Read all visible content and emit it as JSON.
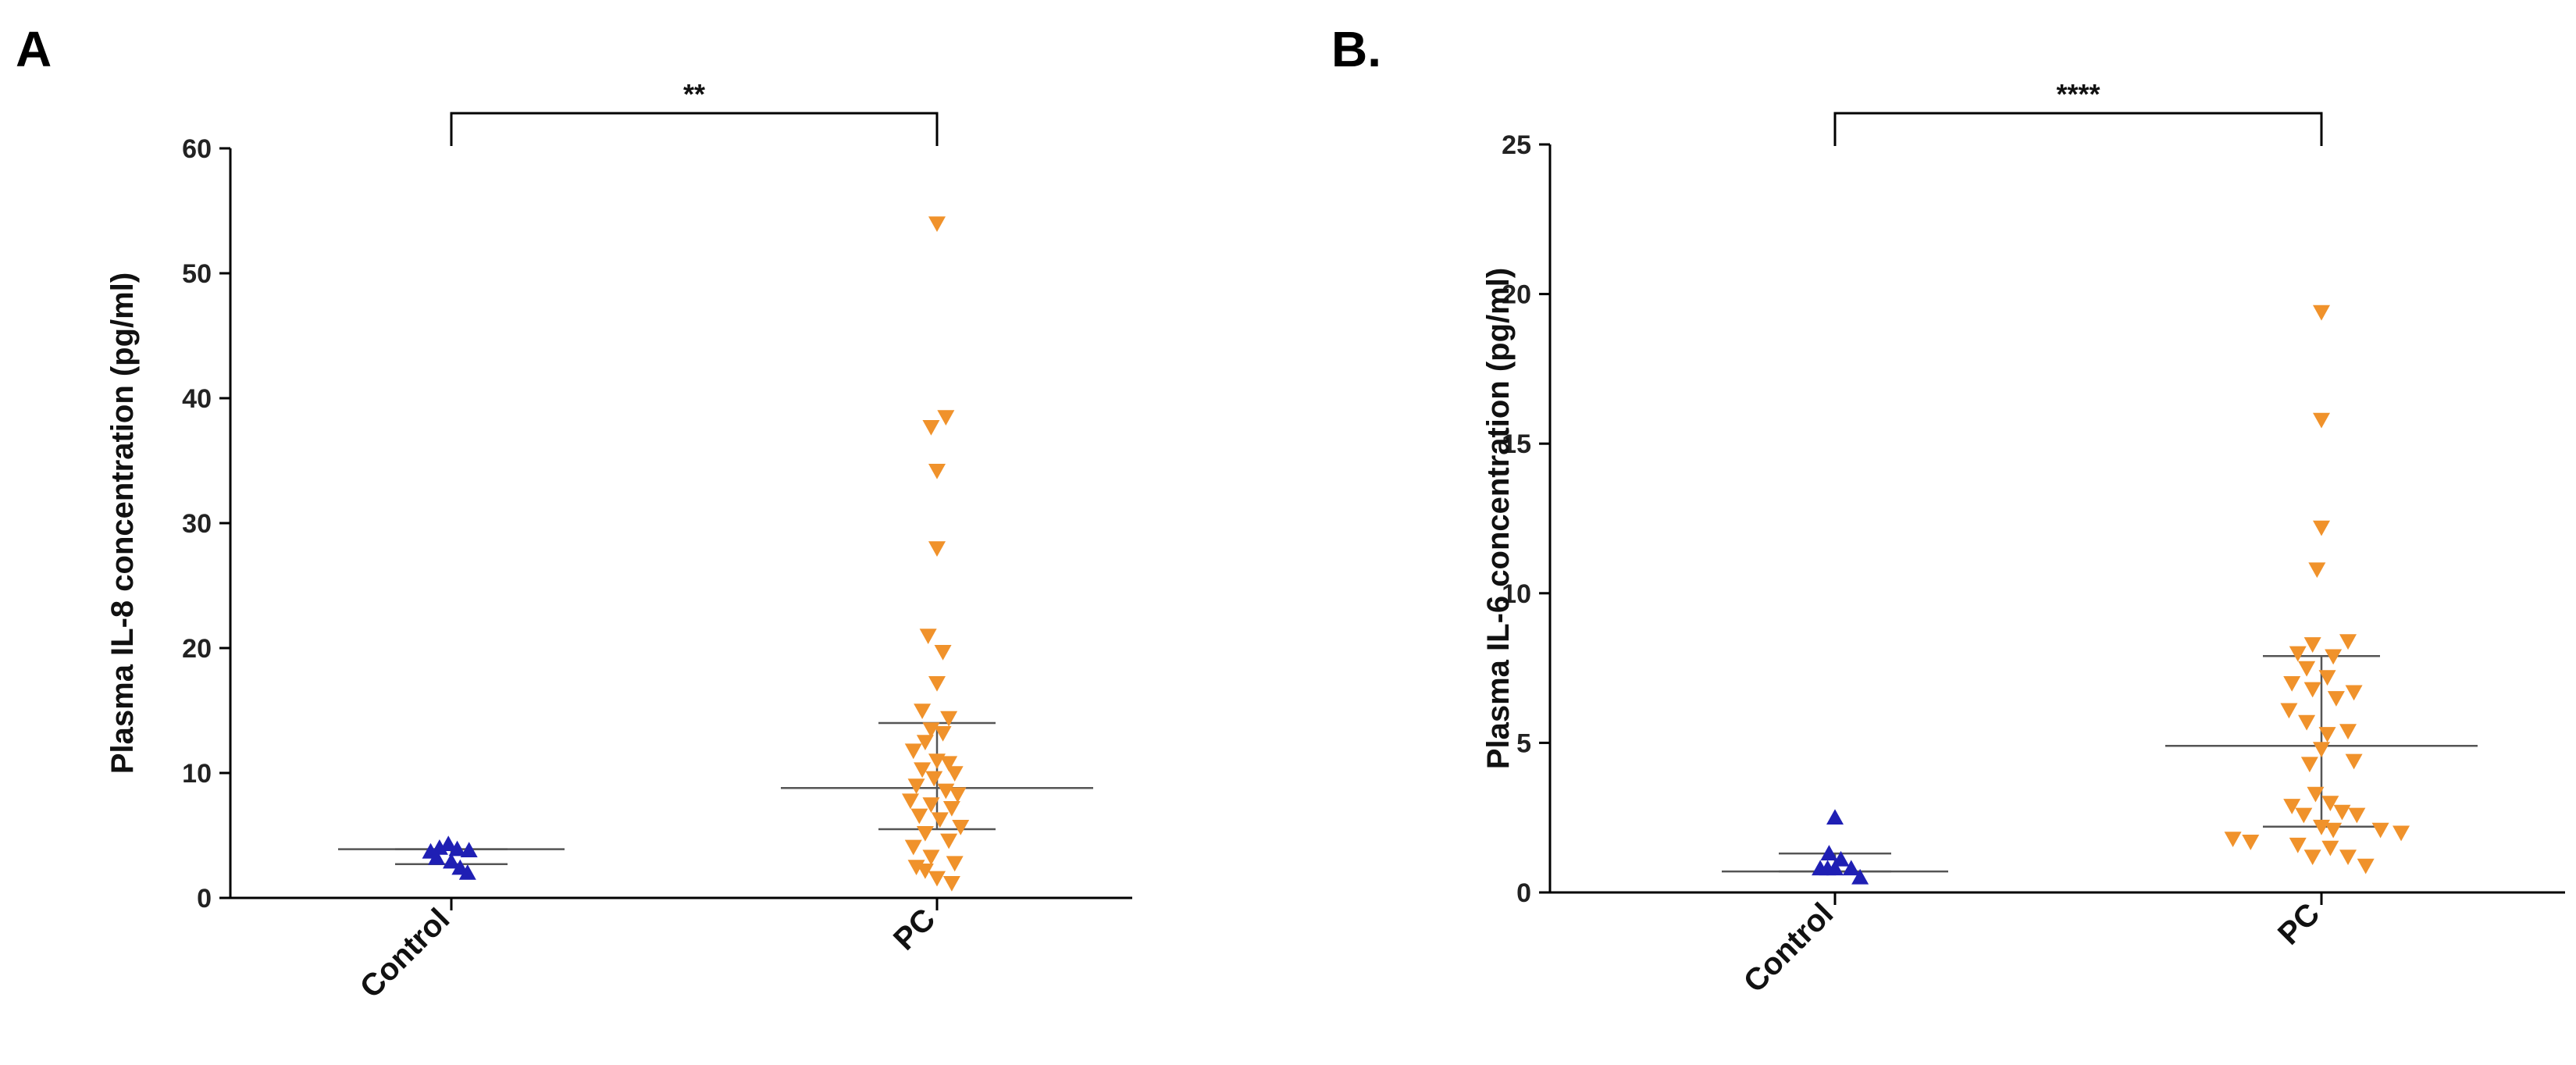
{
  "figure": {
    "panels": [
      "A",
      "B."
    ]
  },
  "chart_data": [
    {
      "panel_label": "A",
      "type": "scatter",
      "title": "",
      "xlabel": "",
      "ylabel": "Plasma IL-8 concentration (pg/ml)",
      "categories": [
        "Control",
        "PC"
      ],
      "ylim": [
        0,
        60
      ],
      "yticks": [
        "0",
        "10",
        "20",
        "30",
        "40",
        "50",
        "60"
      ],
      "grid": false,
      "significance": "**",
      "series": [
        {
          "name": "Control",
          "color": "#1f1fb4",
          "marker": "triangle-up",
          "points": [
            {
              "x": -0.07,
              "y": 3.7
            },
            {
              "x": -0.04,
              "y": 4.0
            },
            {
              "x": -0.01,
              "y": 4.3
            },
            {
              "x": 0.02,
              "y": 3.9
            },
            {
              "x": 0.06,
              "y": 3.8
            },
            {
              "x": -0.05,
              "y": 3.2
            },
            {
              "x": 0.0,
              "y": 2.9
            },
            {
              "x": 0.03,
              "y": 2.4
            },
            {
              "x": 0.055,
              "y": 2.0
            }
          ],
          "mean": 3.9,
          "error_upper": 3.9,
          "error_lower": 2.7
        },
        {
          "name": "PC",
          "color": "#f0922b",
          "marker": "triangle-down",
          "points": [
            {
              "x": 0.0,
              "y": 54.0
            },
            {
              "x": 0.03,
              "y": 38.5
            },
            {
              "x": -0.02,
              "y": 37.7
            },
            {
              "x": 0.0,
              "y": 34.2
            },
            {
              "x": 0.0,
              "y": 28.0
            },
            {
              "x": -0.03,
              "y": 21.0
            },
            {
              "x": 0.02,
              "y": 19.7
            },
            {
              "x": 0.0,
              "y": 17.2
            },
            {
              "x": -0.05,
              "y": 15.0
            },
            {
              "x": 0.04,
              "y": 14.4
            },
            {
              "x": -0.02,
              "y": 13.5
            },
            {
              "x": 0.02,
              "y": 13.2
            },
            {
              "x": -0.04,
              "y": 12.5
            },
            {
              "x": -0.08,
              "y": 11.8
            },
            {
              "x": 0.0,
              "y": 11.0
            },
            {
              "x": 0.04,
              "y": 10.8
            },
            {
              "x": -0.05,
              "y": 10.3
            },
            {
              "x": 0.06,
              "y": 10.0
            },
            {
              "x": -0.01,
              "y": 9.6
            },
            {
              "x": -0.07,
              "y": 9.0
            },
            {
              "x": 0.03,
              "y": 8.6
            },
            {
              "x": 0.07,
              "y": 8.3
            },
            {
              "x": -0.09,
              "y": 7.8
            },
            {
              "x": -0.02,
              "y": 7.5
            },
            {
              "x": 0.05,
              "y": 7.2
            },
            {
              "x": -0.06,
              "y": 6.6
            },
            {
              "x": 0.01,
              "y": 6.3
            },
            {
              "x": 0.08,
              "y": 5.7
            },
            {
              "x": -0.04,
              "y": 5.2
            },
            {
              "x": 0.04,
              "y": 4.6
            },
            {
              "x": -0.08,
              "y": 4.1
            },
            {
              "x": -0.02,
              "y": 3.3
            },
            {
              "x": 0.06,
              "y": 2.8
            },
            {
              "x": -0.07,
              "y": 2.5
            },
            {
              "x": -0.04,
              "y": 2.2
            },
            {
              "x": 0.0,
              "y": 1.6
            },
            {
              "x": 0.05,
              "y": 1.2
            }
          ],
          "mean": 8.8,
          "error_upper": 14.0,
          "error_lower": 5.5
        }
      ]
    },
    {
      "panel_label": "B.",
      "type": "scatter",
      "title": "",
      "xlabel": "",
      "ylabel": "Plasma IL-6 concentration (pg/ml)",
      "categories": [
        "Control",
        "PC"
      ],
      "ylim": [
        0,
        25
      ],
      "yticks": [
        "0",
        "5",
        "10",
        "15",
        "20",
        "25"
      ],
      "grid": false,
      "significance": "****",
      "series": [
        {
          "name": "Control",
          "color": "#1f1fb4",
          "marker": "triangle-up",
          "points": [
            {
              "x": 0.0,
              "y": 2.5
            },
            {
              "x": -0.02,
              "y": 1.3
            },
            {
              "x": 0.02,
              "y": 1.1
            },
            {
              "x": -0.05,
              "y": 0.8
            },
            {
              "x": -0.025,
              "y": 0.8
            },
            {
              "x": 0.0,
              "y": 0.8
            },
            {
              "x": 0.055,
              "y": 0.8
            },
            {
              "x": 0.085,
              "y": 0.5
            }
          ],
          "mean": 0.7,
          "error_upper": 1.3,
          "error_lower": 0.7
        },
        {
          "name": "PC",
          "color": "#f0922b",
          "marker": "triangle-down",
          "points": [
            {
              "x": 0.0,
              "y": 19.4
            },
            {
              "x": 0.0,
              "y": 15.8
            },
            {
              "x": 0.0,
              "y": 12.2
            },
            {
              "x": -0.015,
              "y": 10.8
            },
            {
              "x": 0.09,
              "y": 8.4
            },
            {
              "x": -0.03,
              "y": 8.3
            },
            {
              "x": -0.08,
              "y": 8.0
            },
            {
              "x": 0.04,
              "y": 7.9
            },
            {
              "x": -0.05,
              "y": 7.5
            },
            {
              "x": 0.02,
              "y": 7.2
            },
            {
              "x": -0.1,
              "y": 7.0
            },
            {
              "x": -0.03,
              "y": 6.8
            },
            {
              "x": 0.05,
              "y": 6.5
            },
            {
              "x": 0.11,
              "y": 6.7
            },
            {
              "x": -0.11,
              "y": 6.1
            },
            {
              "x": -0.05,
              "y": 5.7
            },
            {
              "x": 0.02,
              "y": 5.3
            },
            {
              "x": 0.09,
              "y": 5.4
            },
            {
              "x": 0.0,
              "y": 4.8
            },
            {
              "x": 0.11,
              "y": 4.4
            },
            {
              "x": -0.04,
              "y": 4.3
            },
            {
              "x": -0.02,
              "y": 3.3
            },
            {
              "x": 0.03,
              "y": 3.0
            },
            {
              "x": -0.1,
              "y": 2.9
            },
            {
              "x": -0.06,
              "y": 2.6
            },
            {
              "x": 0.07,
              "y": 2.7
            },
            {
              "x": 0.12,
              "y": 2.6
            },
            {
              "x": 0.0,
              "y": 2.2
            },
            {
              "x": 0.04,
              "y": 2.1
            },
            {
              "x": 0.2,
              "y": 2.1
            },
            {
              "x": 0.27,
              "y": 2.0
            },
            {
              "x": -0.3,
              "y": 1.8
            },
            {
              "x": -0.24,
              "y": 1.7
            },
            {
              "x": -0.08,
              "y": 1.6
            },
            {
              "x": 0.03,
              "y": 1.5
            },
            {
              "x": -0.03,
              "y": 1.2
            },
            {
              "x": 0.09,
              "y": 1.2
            },
            {
              "x": 0.15,
              "y": 0.9
            }
          ],
          "mean": 4.9,
          "error_upper": 7.9,
          "error_lower": 2.2
        }
      ]
    }
  ]
}
